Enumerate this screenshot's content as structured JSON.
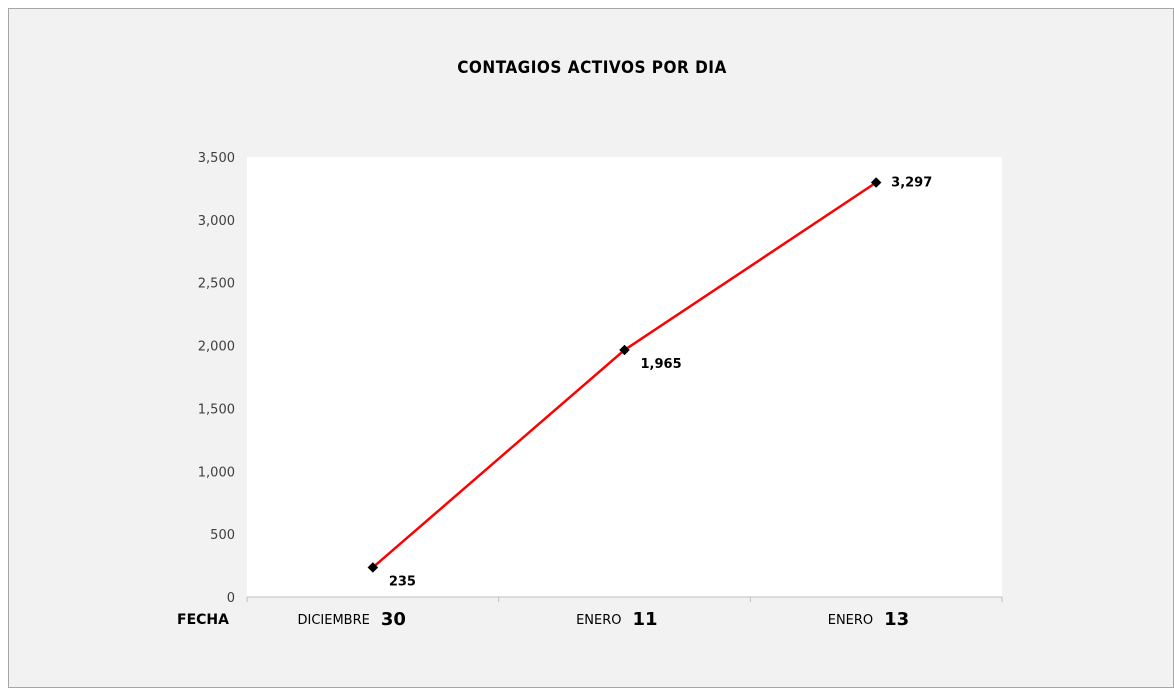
{
  "chart_data": {
    "type": "line",
    "title": "CONTAGIOS ACTIVOS POR DIA",
    "xlabel": "FECHA",
    "ylabel": "",
    "categories": [
      {
        "word": "DICIEMBRE",
        "num": "30"
      },
      {
        "word": "ENERO",
        "num": "11"
      },
      {
        "word": "ENERO",
        "num": "13"
      }
    ],
    "series": [
      {
        "values": [
          235,
          1965,
          3297
        ],
        "labels": [
          "235",
          "1,965",
          "3,297"
        ],
        "color": "#ff0000",
        "marker_color": "#000000",
        "marker": "diamond"
      }
    ],
    "ylim": [
      0,
      3500
    ],
    "yticks": [
      {
        "value": 0,
        "label": "0"
      },
      {
        "value": 500,
        "label": "500"
      },
      {
        "value": 1000,
        "label": "1,000"
      },
      {
        "value": 1500,
        "label": "1,500"
      },
      {
        "value": 2000,
        "label": "2,000"
      },
      {
        "value": 2500,
        "label": "2,500"
      },
      {
        "value": 3000,
        "label": "3,000"
      },
      {
        "value": 3500,
        "label": "3,500"
      }
    ],
    "grid": false,
    "legend": "none",
    "colors": {
      "chart_background": "#f2f2f2",
      "plot_background": "#ffffff",
      "axis": "#bfbfbf"
    }
  }
}
